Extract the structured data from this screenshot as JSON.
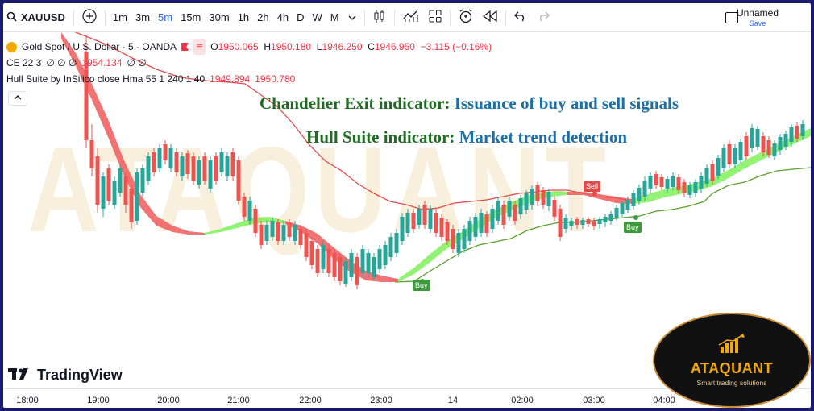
{
  "toolbar": {
    "symbol": "XAUUSD",
    "intervals": [
      "1m",
      "3m",
      "5m",
      "15m",
      "30m",
      "1h",
      "2h",
      "4h",
      "D",
      "W",
      "M"
    ],
    "active_interval": "5m",
    "layout_name": "Unnamed",
    "save_label": "Save"
  },
  "legend": {
    "instrument": "Gold Spot / U.S. Dollar · 5 · OANDA",
    "open_label": "O",
    "open": "1950.065",
    "high_label": "H",
    "high": "1950.180",
    "low_label": "L",
    "low": "1946.250",
    "close_label": "C",
    "close": "1946.950",
    "change": "−3.115 (−0.16%)",
    "ce_label": "CE 22 3",
    "ce_values": "∅ ∅ ∅",
    "ce_value": "1954.134",
    "ce_tail": "∅ ∅",
    "hull_label": "Hull Suite by InSilico close Hma 55 1 240 1 40",
    "hull_value1": "1949.894",
    "hull_value2": "1950.780"
  },
  "annotations": {
    "line1_green": "Chandelier Exit indicator:",
    "line1_blue": "Issuance of buy and sell signals",
    "line2_green": "Hull Suite indicator:",
    "line2_blue": "Market trend detection"
  },
  "signals": {
    "buy1": "Buy",
    "sell": "Sell",
    "buy2": "Buy"
  },
  "watermark": "ATAQUANT",
  "tv_brand": "TradingView",
  "logo": {
    "name": "ATAQUANT",
    "tagline": "Smart trading solutions"
  },
  "time_axis": [
    "18:00",
    "19:00",
    "20:00",
    "21:00",
    "22:00",
    "23:00",
    "14",
    "02:00",
    "03:00",
    "04:00"
  ],
  "colors": {
    "up": "#26a69a",
    "down": "#ef5350",
    "hull_bear": "#f05a5a",
    "hull_bull": "#7ef05a",
    "ce_short": "#e34a4a",
    "ce_long": "#5aa02c",
    "frame": "#1c1a6e"
  }
}
